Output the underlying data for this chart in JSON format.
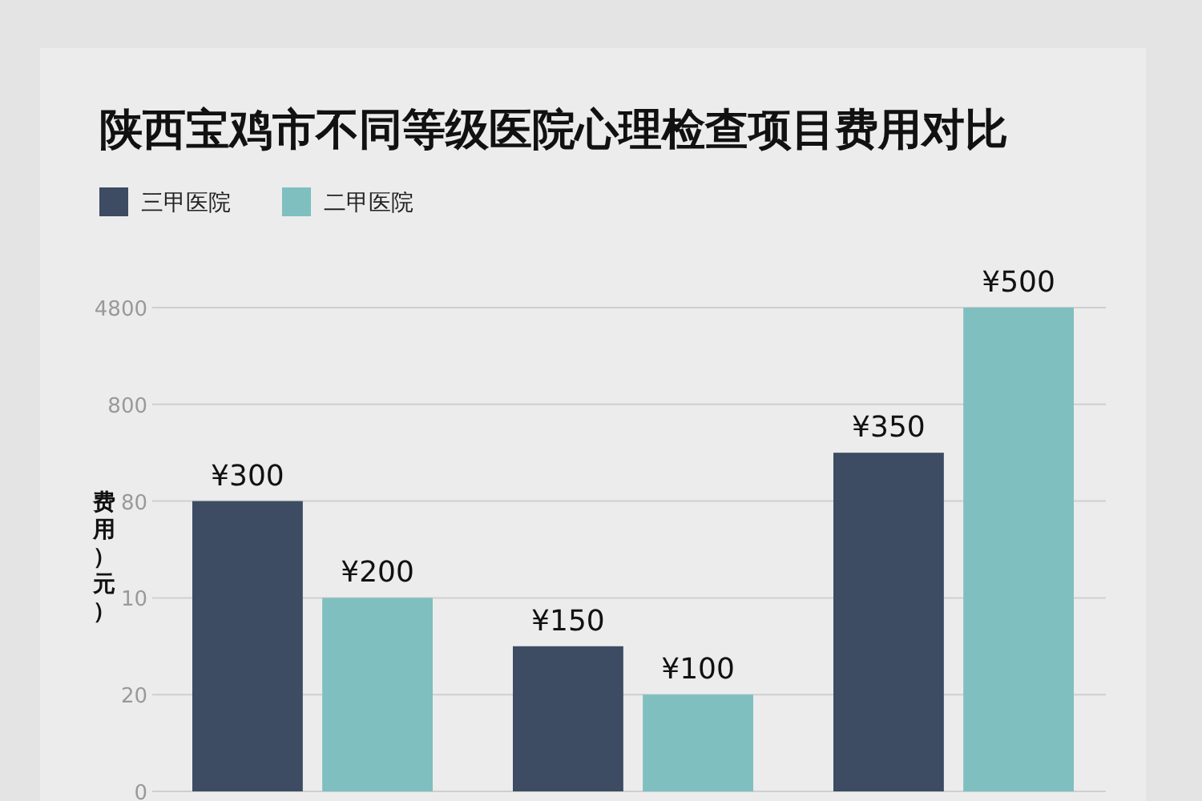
{
  "chart_data": {
    "type": "bar",
    "title": "陕西宝鸡市不同等级医院心理检查项目费用对比",
    "ylabel": "费用）元）",
    "categories": [
      null,
      null,
      null
    ],
    "series": [
      {
        "name": "三甲医院",
        "color": "#3d4b63",
        "values": [
          300,
          150,
          350
        ],
        "value_labels": [
          "¥300",
          "¥150",
          "¥350"
        ]
      },
      {
        "name": "二甲医院",
        "color": "#7fbfbf",
        "values": [
          200,
          100,
          500
        ],
        "value_labels": [
          "¥200",
          "¥100",
          "¥500"
        ]
      }
    ],
    "ylim": [
      0,
      500
    ],
    "annotations": [
      "0",
      "20",
      "10",
      "80",
      "800",
      "4800"
    ],
    "legend": "top left"
  }
}
